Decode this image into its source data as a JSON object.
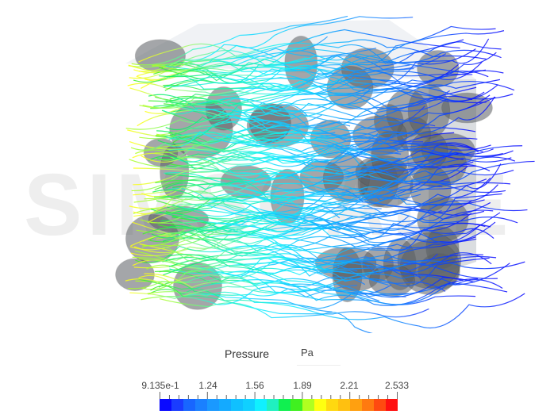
{
  "watermark": "SIMSCALE",
  "legend": {
    "title": "Pressure",
    "unit": "Pa",
    "tick_labels": [
      "9.135e-1",
      "1.24",
      "1.56",
      "1.89",
      "2.21",
      "2.533"
    ],
    "min": 0.9135,
    "max": 2.533,
    "colors": [
      "#0a0aff",
      "#1a3cff",
      "#1866ff",
      "#1a80ff",
      "#1a99ff",
      "#14aaff",
      "#10c0ff",
      "#10d0ff",
      "#10f0ff",
      "#20f0c0",
      "#10f050",
      "#40f020",
      "#b0ff20",
      "#ffff10",
      "#ffd810",
      "#ffc010",
      "#ffa010",
      "#ff7a10",
      "#ff4a10",
      "#ff1010"
    ]
  },
  "viewport": {
    "geometry_color": "#5a5f63"
  }
}
